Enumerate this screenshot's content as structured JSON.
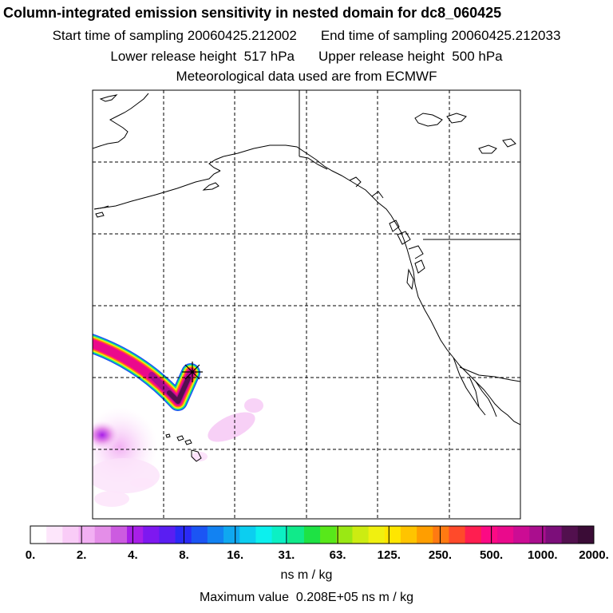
{
  "header": {
    "title": "Column-integrated emission sensitivity in nested domain for dc8_060425",
    "start_label": "Start time of sampling",
    "start_value": "20060425.212002",
    "end_label": "End time of sampling",
    "end_value": "20060425.212033",
    "lower_label": "Lower release height",
    "lower_value": "517 hPa",
    "upper_label": "Upper release height",
    "upper_value": "500 hPa",
    "met_line": "Meteorological data used are from ECMWF"
  },
  "colorbar": {
    "ticks": [
      "0.",
      "2.",
      "4.",
      "8.",
      "16.",
      "31.",
      "63.",
      "125.",
      "250.",
      "500.",
      "1000.",
      "2000."
    ],
    "units": "ns m / kg",
    "colors": [
      "#ffffff",
      "#fde6fb",
      "#f9ccf7",
      "#f2b0f3",
      "#e48ee8",
      "#cc5be0",
      "#a81fe8",
      "#7e18f0",
      "#5a1ef2",
      "#2a2af6",
      "#1b55f4",
      "#1282f2",
      "#0fa8f0",
      "#0ccef0",
      "#0cf0ee",
      "#0cf0c4",
      "#10ea8a",
      "#1ee244",
      "#58e81a",
      "#9ae814",
      "#ccec12",
      "#f0f010",
      "#ffe600",
      "#ffc400",
      "#ff9e00",
      "#ff7a12",
      "#ff4a2a",
      "#ff1e50",
      "#fc0a84",
      "#ea0a8c",
      "#cc0c94",
      "#aa0e8e",
      "#7c0e7a",
      "#52104e",
      "#3a0c36"
    ]
  },
  "max_label": "Maximum value",
  "max_value": "0.208E+05 ns m / kg",
  "release_marker": "release-point-star-icon"
}
